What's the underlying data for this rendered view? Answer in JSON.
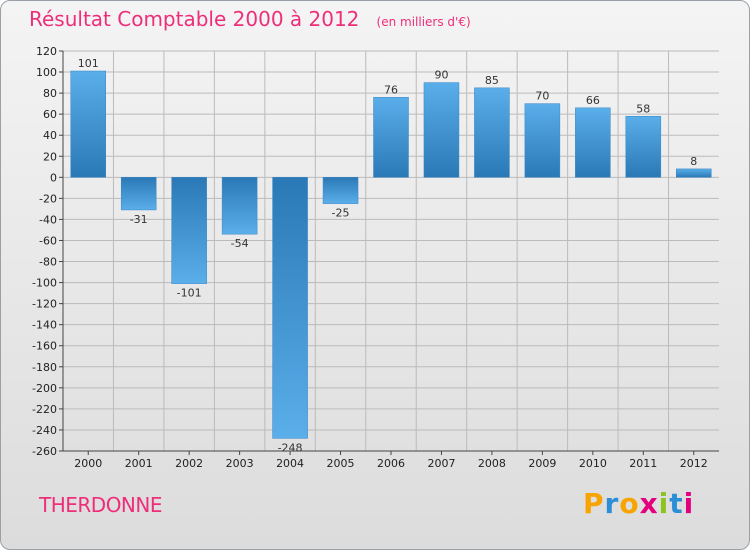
{
  "header": {
    "title": "Résultat Comptable 2000 à 2012",
    "subtitle": "(en milliers d'€)"
  },
  "footer": {
    "town": "THERDONNE",
    "brand_letters": [
      "P",
      "r",
      "o",
      "x",
      "i",
      "t",
      "i"
    ],
    "brand_colors": [
      "#f7a400",
      "#2c8fd6",
      "#f7a400",
      "#e4007d",
      "#8dc21f",
      "#2c8fd6",
      "#e4007d"
    ]
  },
  "colors": {
    "bar_light": "#5aaeea",
    "bar_dark": "#2a79b6",
    "grid": "#bbbbbb",
    "axis": "#444444"
  },
  "chart_data": {
    "type": "bar",
    "title": "Résultat Comptable 2000 à 2012",
    "subtitle": "(en milliers d'€)",
    "xlabel": "",
    "ylabel": "",
    "categories": [
      "2000",
      "2001",
      "2002",
      "2003",
      "2004",
      "2005",
      "2006",
      "2007",
      "2008",
      "2009",
      "2010",
      "2011",
      "2012"
    ],
    "values": [
      101,
      -31,
      -101,
      -54,
      -248,
      -25,
      76,
      90,
      85,
      70,
      66,
      58,
      8
    ],
    "ylim": [
      -260,
      120
    ],
    "yticks": [
      120,
      100,
      80,
      60,
      40,
      20,
      0,
      -20,
      -40,
      -60,
      -80,
      -100,
      -120,
      -140,
      -160,
      -180,
      -200,
      -220,
      -240,
      -260
    ],
    "ytick_labels": [
      "120",
      "100",
      "80",
      "60",
      "40",
      "20",
      "0",
      "-20",
      "-40",
      "-60",
      "-80",
      "-100",
      "-120",
      "-140",
      "-160",
      "-180",
      "-200",
      "-220",
      "-240",
      "-260"
    ],
    "grid": true
  }
}
